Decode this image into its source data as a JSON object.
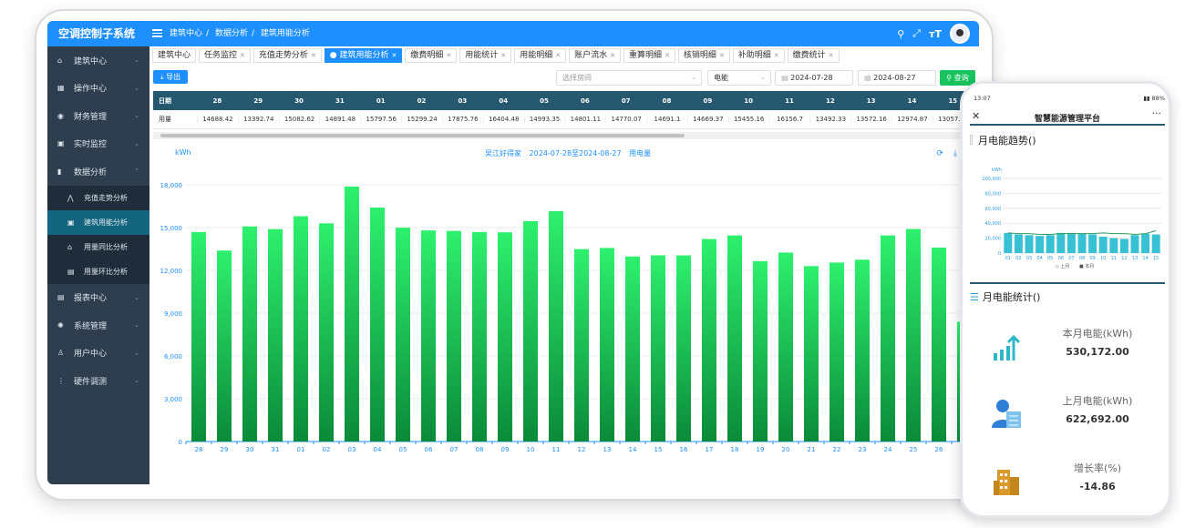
{
  "app": {
    "title": "空调控制子系统"
  },
  "breadcrumb": [
    "建筑中心",
    "数据分析",
    "建筑用能分析"
  ],
  "sidebar": {
    "items": [
      {
        "label": "建筑中心",
        "icon": "home-icon"
      },
      {
        "label": "操作中心",
        "icon": "grid-icon"
      },
      {
        "label": "财务管理",
        "icon": "finance-icon"
      },
      {
        "label": "实时监控",
        "icon": "monitor-icon"
      },
      {
        "label": "数据分析",
        "icon": "bar-chart-icon"
      },
      {
        "label": "报表中心",
        "icon": "report-icon"
      },
      {
        "label": "系统管理",
        "icon": "gear-icon"
      },
      {
        "label": "用户中心",
        "icon": "user-icon"
      },
      {
        "label": "硬件调测",
        "icon": "hardware-icon"
      }
    ],
    "subitems": [
      {
        "label": "充值走势分析",
        "icon": "trend-icon"
      },
      {
        "label": "建筑用能分析",
        "icon": "building-icon"
      },
      {
        "label": "用量同比分析",
        "icon": "compare-icon"
      },
      {
        "label": "用量环比分析",
        "icon": "cycle-icon"
      }
    ]
  },
  "tabs": [
    "建筑中心",
    "任务监控",
    "充值走势分析",
    "建筑用能分析",
    "缴费明细",
    "用能统计",
    "用能明细",
    "账户流水",
    "重算明细",
    "核销明细",
    "补助明细",
    "缴费统计"
  ],
  "toolbar": {
    "export": "导出",
    "room_placeholder": "选择房间",
    "energy_type": "电能",
    "date_from": "2024-07-28",
    "date_to": "2024-08-27",
    "query": "查询"
  },
  "table": {
    "header_label": "日期",
    "row_label": "用量",
    "dates": [
      "28",
      "29",
      "30",
      "31",
      "01",
      "02",
      "03",
      "04",
      "05",
      "06",
      "07",
      "08",
      "09",
      "10",
      "11",
      "12",
      "13",
      "14",
      "15"
    ],
    "values": [
      "14688.42",
      "13392.74",
      "15082.62",
      "14891.48",
      "15797.56",
      "15299.24",
      "17875.76",
      "16404.48",
      "14993.35",
      "14801.11",
      "14770.07",
      "14691.1",
      "14669.37",
      "15455.16",
      "16156.7",
      "13492.33",
      "13572.16",
      "12974.87",
      "13057.12"
    ]
  },
  "chart_labels": {
    "building": "吴江好得家",
    "range": "2024-07-28至2024-08-27",
    "metric": "用电量",
    "unit": "kWh"
  },
  "chart_data": {
    "type": "bar",
    "categories": [
      "28",
      "29",
      "30",
      "31",
      "01",
      "02",
      "03",
      "04",
      "05",
      "06",
      "07",
      "08",
      "09",
      "10",
      "11",
      "12",
      "13",
      "14",
      "15",
      "16",
      "17",
      "18",
      "19",
      "20",
      "21",
      "22",
      "23",
      "24",
      "25",
      "26",
      "27"
    ],
    "values": [
      14688.42,
      13392.74,
      15082.62,
      14891.48,
      15797.56,
      15299.24,
      17875.76,
      16404.48,
      14993.35,
      14801.11,
      14770.07,
      14691.1,
      14669.37,
      15455.16,
      16156.7,
      13492.33,
      13572.16,
      12974.87,
      13057.12,
      13050,
      14200,
      14450,
      12650,
      13250,
      12300,
      12550,
      12750,
      14450,
      14900,
      13600,
      8400
    ],
    "ylabel": "kWh",
    "ylim": [
      0,
      18000
    ],
    "yticks": [
      "0",
      "3,000",
      "6,000",
      "9,000",
      "12,000",
      "15,000",
      "18,000"
    ],
    "grid": true,
    "colors": {
      "top": "#2ef06e",
      "bottom": "#0a8a3a"
    }
  },
  "phone": {
    "status_time": "13:07",
    "status_battery": "88%",
    "title": "智慧能源管理平台",
    "trend_title": "月电能趋势()",
    "stats_title": "月电能统计()",
    "mini_chart": {
      "type": "bar",
      "unit": "kWh",
      "yticks": [
        "0",
        "20,000",
        "40,000",
        "60,000",
        "80,000",
        "100,000"
      ],
      "categories": [
        "01",
        "02",
        "03",
        "04",
        "05",
        "06",
        "07",
        "08",
        "09",
        "10",
        "11",
        "12",
        "13",
        "14",
        "15"
      ],
      "values": [
        27000,
        25000,
        24000,
        23000,
        24000,
        27000,
        27000,
        26000,
        25000,
        22000,
        20000,
        19000,
        24000,
        26000,
        25000
      ],
      "line": [
        27000,
        26000,
        26000,
        25000,
        25000,
        26000,
        26000,
        26000,
        26000,
        27000,
        26000,
        26000,
        25000,
        26000,
        30000
      ],
      "legend": [
        "上月",
        "本月"
      ]
    },
    "stats": [
      {
        "label": "本月电能(kWh)",
        "value": "530,172.00",
        "icon": "rising-bars-icon"
      },
      {
        "label": "上月电能(kWh)",
        "value": "622,692.00",
        "icon": "user-card-icon"
      },
      {
        "label": "增长率(%)",
        "value": "-14.86",
        "icon": "building-icon"
      }
    ]
  }
}
